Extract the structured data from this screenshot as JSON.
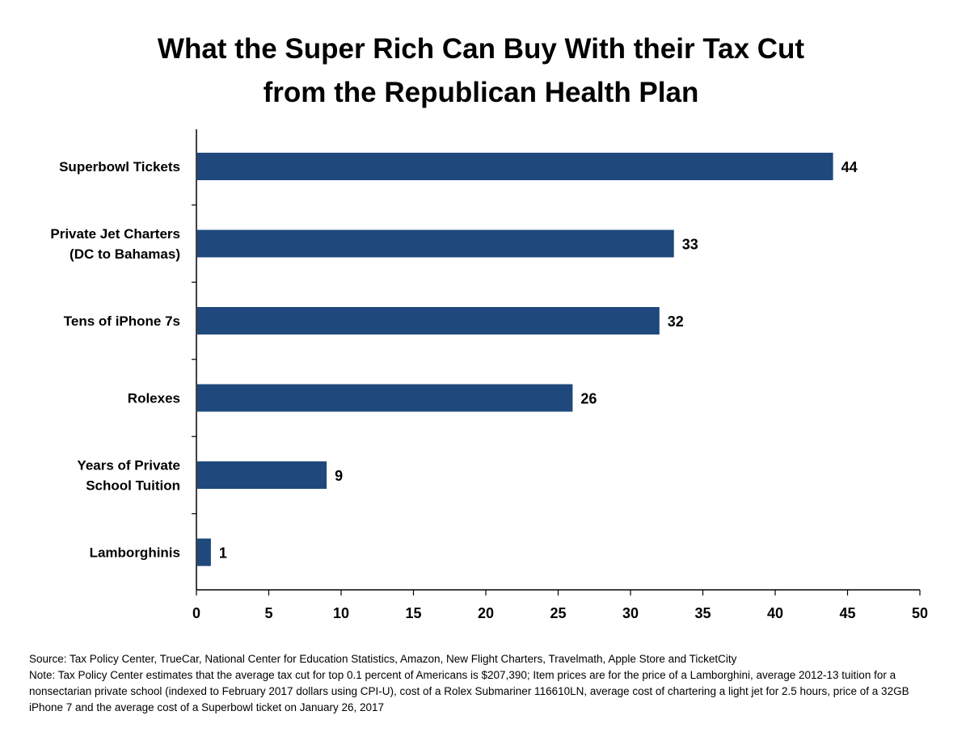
{
  "title_lines": [
    "What the Super Rich Can Buy With their Tax Cut",
    "from the Republican Health Plan"
  ],
  "chart_data": {
    "type": "bar",
    "orientation": "horizontal",
    "categories": [
      [
        "Superbowl Tickets"
      ],
      [
        "Private Jet Charters",
        "(DC to Bahamas)"
      ],
      [
        "Tens of iPhone 7s"
      ],
      [
        "Rolexes"
      ],
      [
        "Years of Private",
        "School Tuition"
      ],
      [
        "Lamborghinis"
      ]
    ],
    "values": [
      44,
      33,
      32,
      26,
      9,
      1
    ],
    "data_labels": [
      "44",
      "33",
      "32",
      "26",
      "9",
      "1"
    ],
    "xlim": [
      0,
      50
    ],
    "xticks": [
      0,
      5,
      10,
      15,
      20,
      25,
      30,
      35,
      40,
      45,
      50
    ],
    "grid": false,
    "bar_color": "#1f497d"
  },
  "notes": {
    "source": "Source: Tax Policy Center, TrueCar, National Center for Education Statistics, Amazon, New Flight Charters, Travelmath, Apple Store and TicketCity",
    "note": "Note: Tax Policy Center estimates that the average tax cut for top 0.1 percent of Americans is $207,390; Item prices are for the price of a Lamborghini, average 2012-13 tuition for a nonsectarian private school (indexed to February 2017 dollars using CPI-U), cost of a Rolex Submariner 116610LN, average cost of chartering a light jet for 2.5 hours, price of a 32GB iPhone 7 and the average cost of a Superbowl ticket on January 26, 2017"
  }
}
